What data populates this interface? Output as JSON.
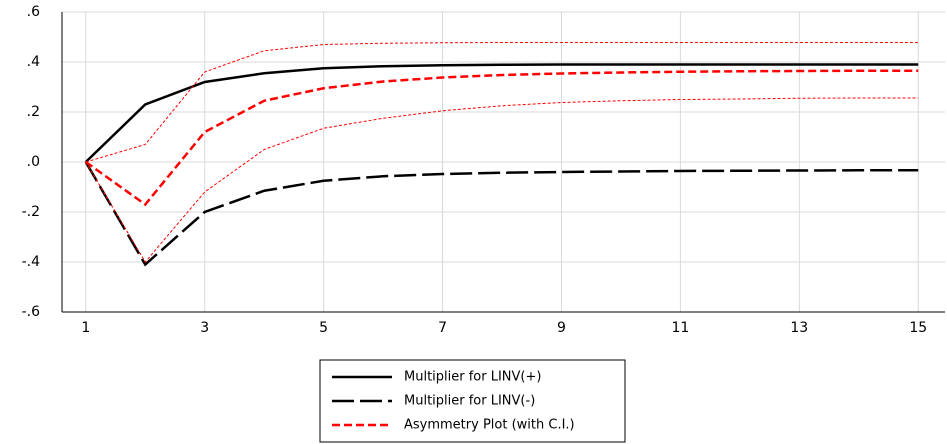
{
  "chart_data": {
    "type": "line",
    "x": [
      1,
      2,
      3,
      4,
      5,
      6,
      7,
      8,
      9,
      10,
      11,
      12,
      13,
      14,
      15
    ],
    "xlim": [
      0.6,
      15.45
    ],
    "xticks": [
      1,
      3,
      5,
      7,
      9,
      11,
      13,
      15
    ],
    "ylim": [
      -0.6,
      0.6
    ],
    "yticks": [
      {
        "value": -0.6,
        "label": "-.6"
      },
      {
        "value": -0.4,
        "label": "-.4"
      },
      {
        "value": -0.2,
        "label": "-.2"
      },
      {
        "value": 0,
        "label": ".0"
      },
      {
        "value": 0.2,
        "label": ".2"
      },
      {
        "value": 0.4,
        "label": ".4"
      },
      {
        "value": 0.6,
        "label": ".6"
      }
    ],
    "grid": true,
    "legend": "bottom",
    "series": [
      {
        "name": "Multiplier for LINV(+)",
        "color": "#000000",
        "dash": "solid",
        "width": 2.5,
        "values": [
          0,
          0.23,
          0.32,
          0.355,
          0.375,
          0.383,
          0.387,
          0.389,
          0.39,
          0.39,
          0.39,
          0.39,
          0.39,
          0.39,
          0.39
        ]
      },
      {
        "name": "Multiplier for LINV(-)",
        "color": "#000000",
        "dash": "long",
        "width": 2.5,
        "values": [
          0,
          -0.41,
          -0.2,
          -0.115,
          -0.075,
          -0.057,
          -0.048,
          -0.043,
          -0.04,
          -0.038,
          -0.036,
          -0.035,
          -0.034,
          -0.033,
          -0.033
        ]
      },
      {
        "name": "Asymmetry Plot (with C.I.)",
        "color": "#ff0000",
        "dash": "short",
        "width": 2.5,
        "values": [
          0,
          -0.17,
          0.12,
          0.245,
          0.295,
          0.322,
          0.338,
          0.348,
          0.354,
          0.358,
          0.361,
          0.363,
          0.364,
          0.365,
          0.365
        ]
      },
      {
        "color": "#ff0000",
        "dash": "dotted",
        "width": 1,
        "values": [
          0,
          0.07,
          0.36,
          0.445,
          0.47,
          0.475,
          0.477,
          0.478,
          0.478,
          0.478,
          0.478,
          0.478,
          0.478,
          0.478,
          0.478
        ]
      },
      {
        "color": "#ff0000",
        "dash": "dotted",
        "width": 1,
        "values": [
          0,
          -0.4,
          -0.12,
          0.05,
          0.135,
          0.175,
          0.205,
          0.225,
          0.238,
          0.245,
          0.25,
          0.252,
          0.255,
          0.256,
          0.256
        ]
      }
    ]
  }
}
